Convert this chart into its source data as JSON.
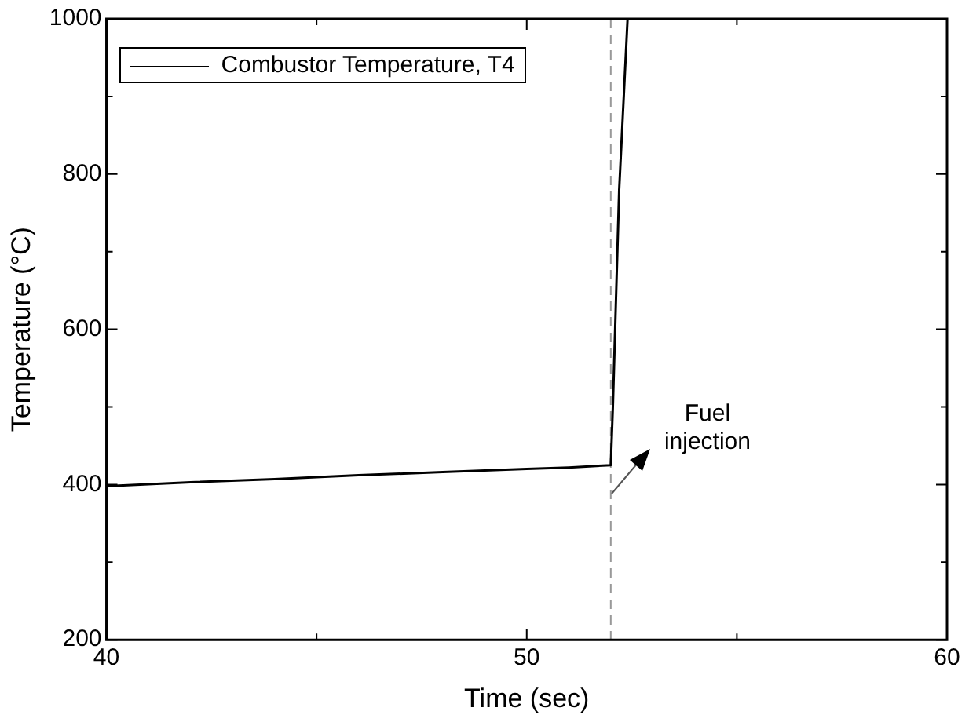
{
  "chart_data": {
    "type": "line",
    "xlabel": "Time (sec)",
    "ylabel": "Temperature (°C)",
    "series": [
      {
        "name": "Combustor Temperature, T4",
        "color": "#000000",
        "x": [
          40,
          42,
          44,
          46,
          48,
          50,
          51,
          52,
          52.05,
          52.2,
          52.4
        ],
        "values": [
          398,
          403,
          407,
          412,
          416,
          420,
          422,
          425,
          500,
          780,
          1000
        ]
      }
    ],
    "xlim": [
      40,
      60
    ],
    "xticks": [
      40,
      50,
      60
    ],
    "ylim": [
      200,
      1000
    ],
    "yticks": [
      200,
      400,
      600,
      800,
      1000
    ],
    "ref_lines": [
      {
        "axis": "x",
        "value": 52,
        "color": "#999999",
        "line_style": "dashed"
      }
    ],
    "annotations": [
      "Fuel\ninjection"
    ],
    "legend": "top left",
    "marker": "none",
    "line_style": "solid",
    "grid": false
  }
}
